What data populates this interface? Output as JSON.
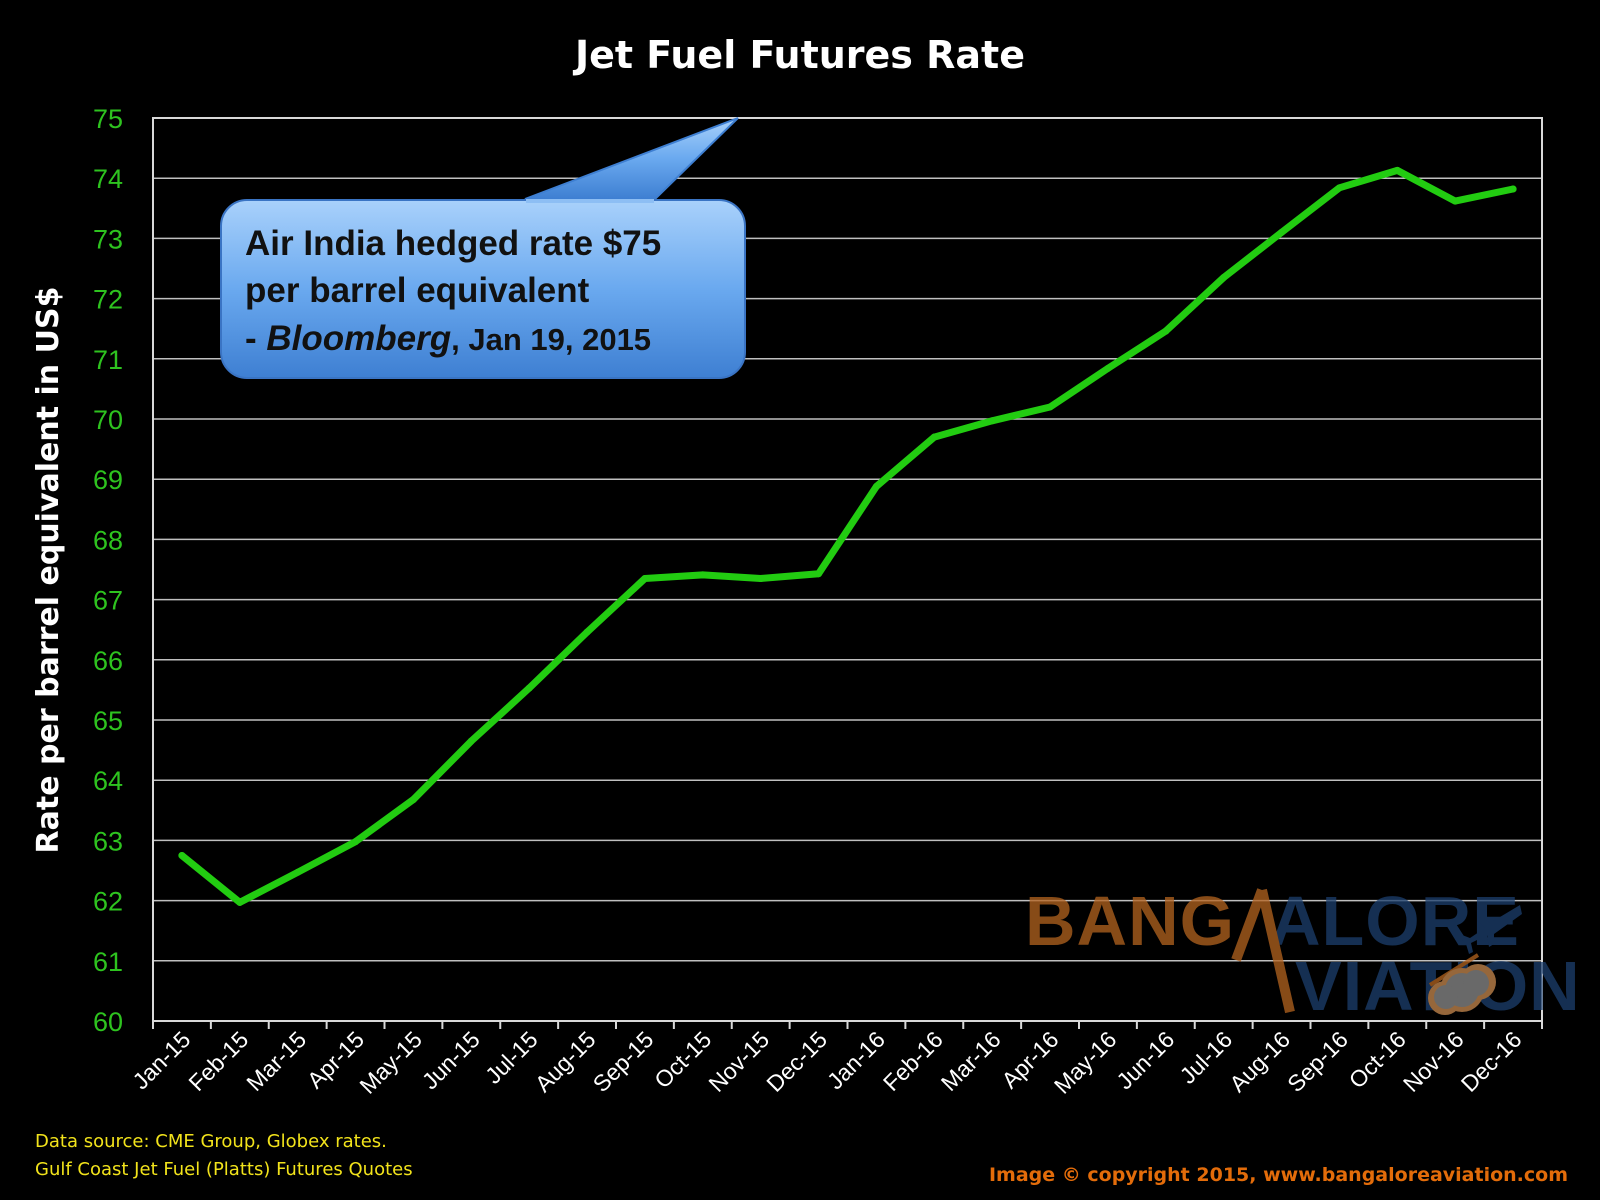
{
  "chart_data": {
    "type": "line",
    "title": "Jet Fuel Futures Rate",
    "xlabel": "",
    "ylabel": "Rate per barrel equivalent in US$",
    "ylim": [
      60,
      75
    ],
    "yticks": [
      60,
      61,
      62,
      63,
      64,
      65,
      66,
      67,
      68,
      69,
      70,
      71,
      72,
      73,
      74,
      75
    ],
    "grid": true,
    "categories": [
      "Jan-15",
      "Feb-15",
      "Mar-15",
      "Apr-15",
      "May-15",
      "Jun-15",
      "Jul-15",
      "Aug-15",
      "Sep-15",
      "Oct-15",
      "Nov-15",
      "Dec-15",
      "Jan-16",
      "Feb-16",
      "Mar-16",
      "Apr-16",
      "May-16",
      "Jun-16",
      "Jul-16",
      "Aug-16",
      "Sep-16",
      "Oct-16",
      "Nov-16",
      "Dec-16"
    ],
    "series": [
      {
        "color": "#22cc11",
        "values": [
          62.75,
          61.97,
          62.47,
          62.98,
          63.68,
          64.65,
          65.53,
          66.46,
          67.35,
          67.41,
          67.35,
          67.43,
          68.88,
          69.7,
          69.97,
          70.2,
          70.84,
          71.46,
          72.35,
          73.1,
          73.84,
          74.13,
          73.62,
          73.82
        ]
      }
    ],
    "annotation": {
      "line1": "Air India hedged rate $75",
      "line2": "per barrel equivalent",
      "line3_prefix": "- ",
      "line3_source": "Bloomberg",
      "line3_date": ", Jan 19, 2015"
    }
  },
  "source_note": {
    "line1": "Data source: CME Group, Globex rates.",
    "line2": "Gulf Coast Jet Fuel (Platts) Futures Quotes"
  },
  "copyright": "Image © copyright 2015, www.bangaloreaviation.com",
  "watermark": {
    "line1": "BANGALORE",
    "line2": "AVIATION"
  },
  "colors": {
    "background": "#000000",
    "line": "#22cc11",
    "ytick": "#2ec31f",
    "source_note": "#f2e31b",
    "copyright": "#e36c0a",
    "callout": "#5b9be0"
  }
}
